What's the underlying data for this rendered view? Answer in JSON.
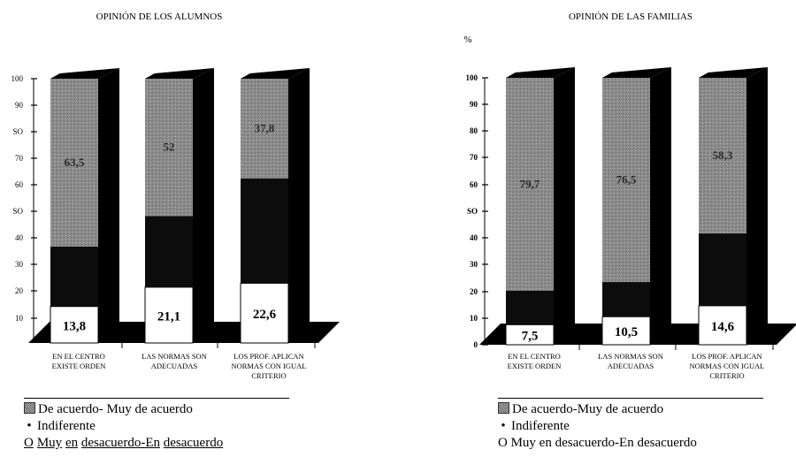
{
  "chart_data": [
    {
      "type": "bar",
      "stacked": true,
      "title": "OPINIÓN DE LOS ALUMNOS",
      "ylabel": "",
      "ylim": [
        0,
        100
      ],
      "yticks": [
        "10",
        "20",
        "30",
        "40",
        "SO",
        "60",
        "70",
        "SO",
        "90",
        "100"
      ],
      "categories": [
        [
          "EN EL CENTRO",
          "EXISTE ORDEN"
        ],
        [
          "LAS NORMAS SON",
          "ADECUADAS"
        ],
        [
          "LOS PROF. APLICAN",
          "NORMAS CON IGUAL",
          "CRITERIO"
        ]
      ],
      "series": [
        {
          "name": "O Muy en desacuerdo-En desacuerdo",
          "values": [
            13.8,
            21.1,
            22.6
          ],
          "labels": [
            "13,8",
            "21,1",
            "22,6"
          ]
        },
        {
          "name": "Indiferente",
          "values": [
            22.7,
            26.9,
            39.6
          ],
          "labels": [
            "",
            "",
            ""
          ]
        },
        {
          "name": "De acuerdo- Muy de acuerdo",
          "values": [
            63.5,
            52,
            37.8
          ],
          "labels": [
            "63,5",
            "52",
            "37,8"
          ]
        }
      ],
      "legend": {
        "items": [
          "De acuerdo- Muy de acuerdo",
          "Indiferente"
        ],
        "last_marker": "O",
        "last_words": [
          "Muy",
          "en",
          "desacuerdo-En",
          "desacuerdo"
        ]
      },
      "colors": {
        "agree": "#8c8c8c",
        "indifferent": "#0c0c0c",
        "disagree": "#ffffff",
        "side": "#000000"
      }
    },
    {
      "type": "bar",
      "stacked": true,
      "title": "OPINIÓN DE LAS FAMILIAS",
      "ylabel": "%",
      "ylim": [
        0,
        100
      ],
      "yticks": [
        "0",
        "10",
        "20",
        "30",
        "40",
        "SO",
        "60",
        "70",
        "80",
        "90",
        "100"
      ],
      "categories": [
        [
          "EN EL CENTRO",
          "EXISTE ORDEN"
        ],
        [
          "LAS NORMAS SON",
          "ADECUADAS"
        ],
        [
          "LOS PROF. APLICAN",
          "NORMAS CON IGUAL",
          "CRITERIO"
        ]
      ],
      "series": [
        {
          "name": "O Muy en desacuerdo-En desacuerdo",
          "values": [
            7.5,
            10.5,
            14.6
          ],
          "labels": [
            "7,5",
            "10,5",
            "14,6"
          ]
        },
        {
          "name": "Indiferente",
          "values": [
            12.8,
            13,
            27.1
          ],
          "labels": [
            "",
            "",
            ""
          ]
        },
        {
          "name": "De acuerdo-Muy de acuerdo",
          "values": [
            79.7,
            76.5,
            58.3
          ],
          "labels": [
            "79,7",
            "76,5",
            "58,3"
          ]
        }
      ],
      "legend": {
        "items": [
          "De acuerdo-Muy de acuerdo",
          "Indiferente"
        ],
        "last": "O Muy en desacuerdo-En desacuerdo"
      },
      "colors": {
        "agree": "#8c8c8c",
        "indifferent": "#0c0c0c",
        "disagree": "#ffffff",
        "side": "#000000"
      }
    }
  ]
}
